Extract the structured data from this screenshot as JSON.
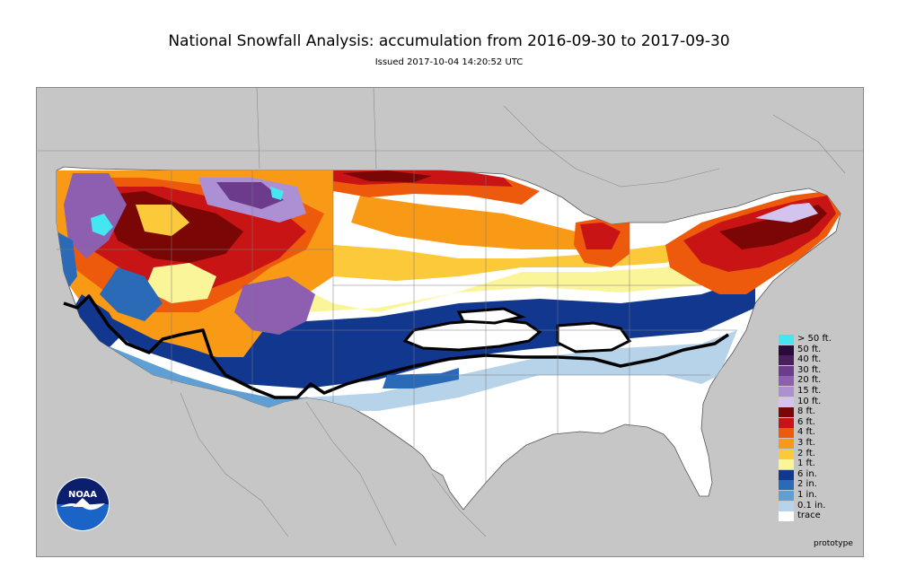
{
  "header": {
    "title": "National Snowfall Analysis: accumulation from 2016-09-30 to 2017-09-30",
    "subtitle": "Issued 2017-10-04 14:20:52 UTC"
  },
  "map": {
    "land_color": "#ffffff",
    "background_color": "#c6c6c6",
    "legend": [
      {
        "label": "> 50 ft.",
        "color": "#44e6f2"
      },
      {
        "label": "50 ft.",
        "color": "#2a0a3a"
      },
      {
        "label": "40 ft.",
        "color": "#4a1f5e"
      },
      {
        "label": "30 ft.",
        "color": "#6d3b8c"
      },
      {
        "label": "20 ft.",
        "color": "#8e5fb0"
      },
      {
        "label": "15 ft.",
        "color": "#ad8fd3"
      },
      {
        "label": "10 ft.",
        "color": "#d2c4ee"
      },
      {
        "label": "8 ft.",
        "color": "#7a0606"
      },
      {
        "label": "6 ft.",
        "color": "#c81414"
      },
      {
        "label": "4 ft.",
        "color": "#ee5a0c"
      },
      {
        "label": "3 ft.",
        "color": "#f99a16"
      },
      {
        "label": "2 ft.",
        "color": "#fbc93a"
      },
      {
        "label": "1 ft.",
        "color": "#fbf59a"
      },
      {
        "label": "6 in.",
        "color": "#12378f"
      },
      {
        "label": "2 in.",
        "color": "#2a6ab7"
      },
      {
        "label": "1 in.",
        "color": "#5f9fd3"
      },
      {
        "label": "0.1 in.",
        "color": "#b6d3ea"
      },
      {
        "label": "trace",
        "color": "#ffffff"
      }
    ]
  },
  "footer": {
    "note": "prototype"
  },
  "logo": {
    "text": "NOAA"
  }
}
